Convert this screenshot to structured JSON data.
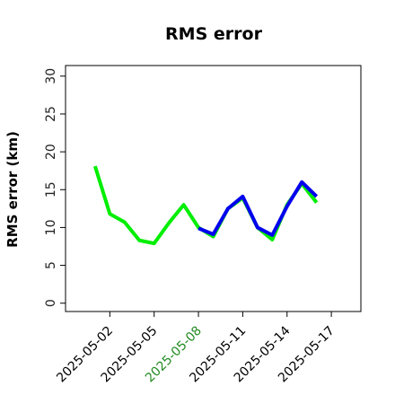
{
  "chart_data": {
    "type": "line",
    "title": "RMS error",
    "y_label": "RMS error (km)",
    "x": [
      "2025-05-01",
      "2025-05-02",
      "2025-05-03",
      "2025-05-04",
      "2025-05-05",
      "2025-05-06",
      "2025-05-07",
      "2025-05-08",
      "2025-05-09",
      "2025-05-10",
      "2025-05-11",
      "2025-05-12",
      "2025-05-13",
      "2025-05-14",
      "2025-05-15",
      "2025-05-16"
    ],
    "series": [
      {
        "color": "#00ee00",
        "values": [
          18.1,
          11.8,
          10.7,
          8.3,
          7.9,
          10.6,
          13.0,
          10.0,
          8.8,
          12.5,
          13.9,
          10.0,
          8.4,
          13.0,
          15.8,
          13.3
        ]
      },
      {
        "color": "#0000ee",
        "values": [
          null,
          null,
          null,
          null,
          null,
          null,
          null,
          9.9,
          9.1,
          12.5,
          14.1,
          10.0,
          9.0,
          12.8,
          16.0,
          14.1
        ]
      }
    ],
    "xlim": [
      "2025-04-29",
      "2025-05-19"
    ],
    "xticks": [
      "2025-05-02",
      "2025-05-05",
      "2025-05-08",
      "2025-05-11",
      "2025-05-14",
      "2025-05-17"
    ],
    "xtick_colors": [
      "#000000",
      "#000000",
      "#228b22",
      "#000000",
      "#000000",
      "#000000"
    ],
    "ylim": [
      -1.1,
      31.4
    ],
    "yticks": [
      0,
      5,
      10,
      15,
      20,
      25,
      30
    ]
  }
}
